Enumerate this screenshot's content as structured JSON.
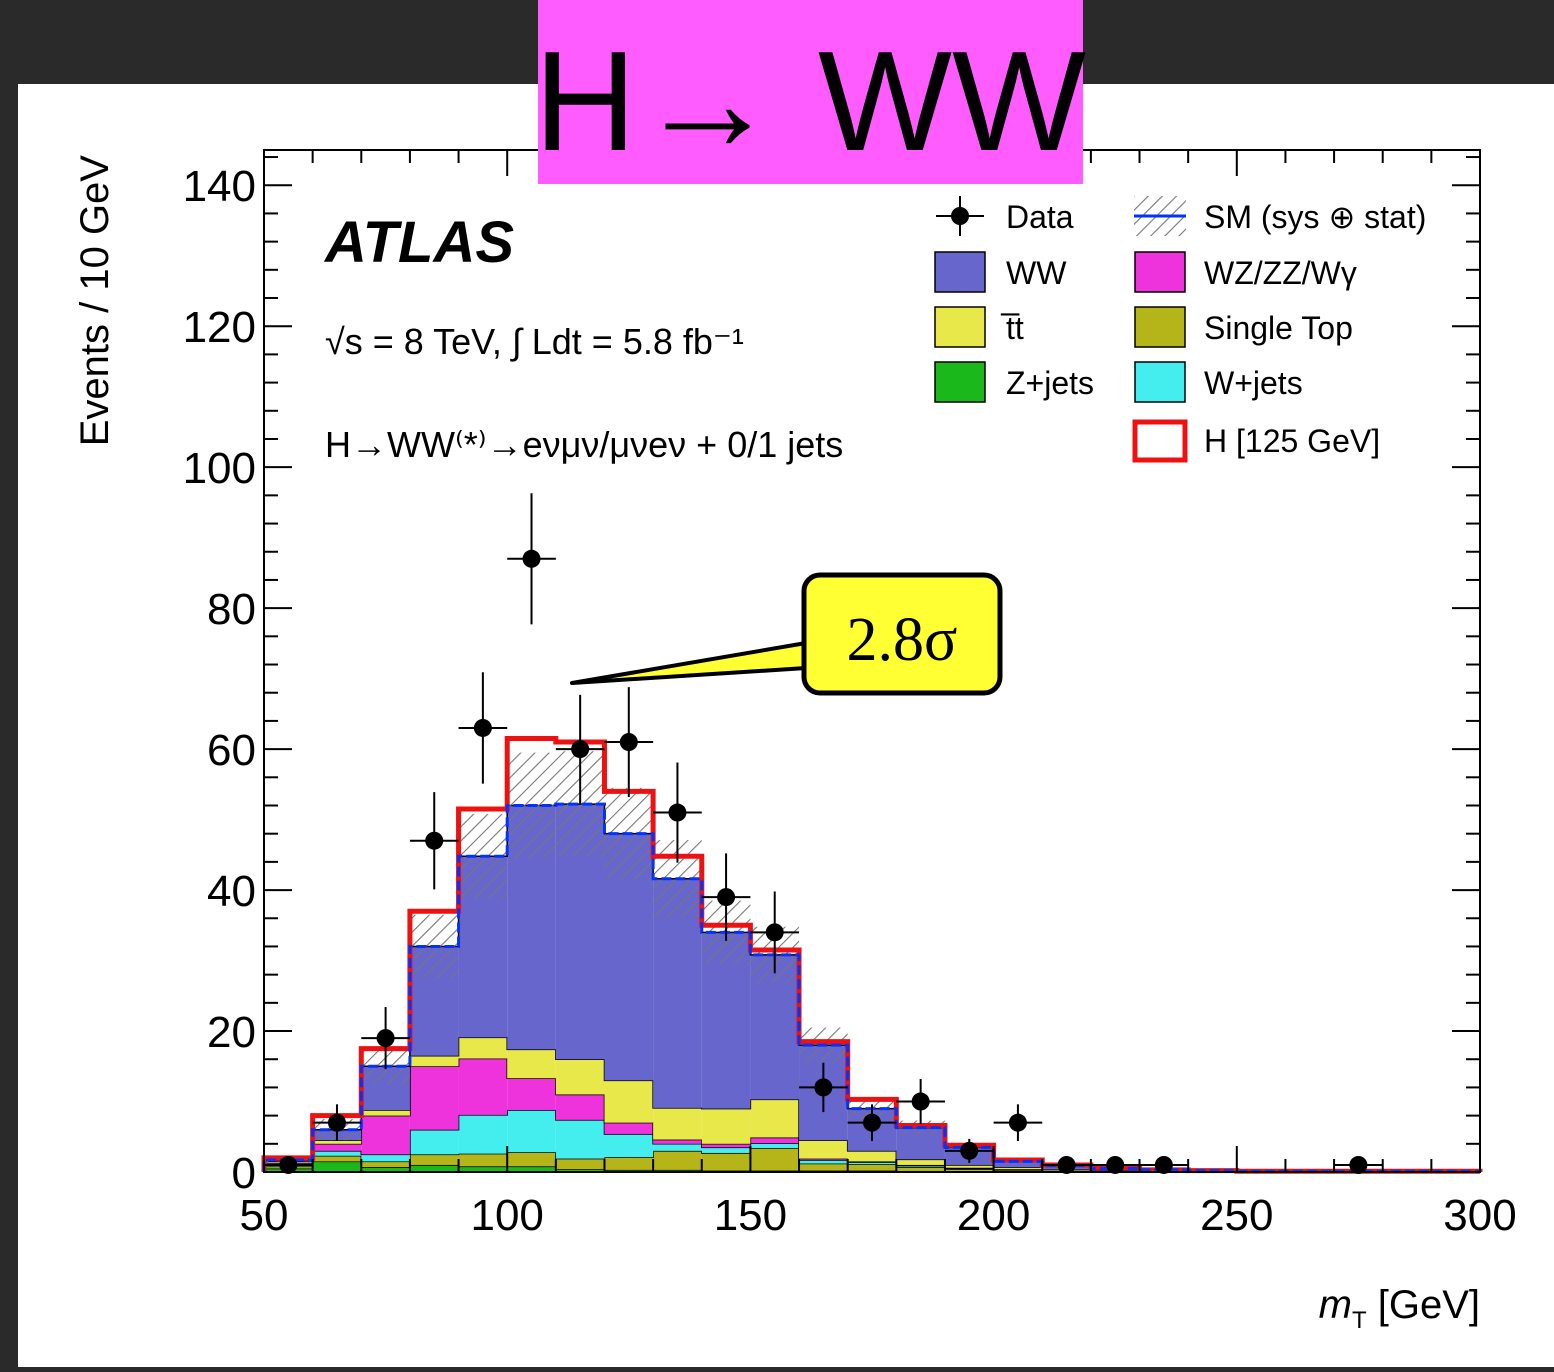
{
  "banner": {
    "title": "H→ WW",
    "bg_color": "#ff5cff"
  },
  "callout": {
    "label": "2.8σ",
    "bg_color": "#ffff33"
  },
  "chart_data": {
    "type": "bar",
    "subtype": "stacked-histogram",
    "experiment": "ATLAS",
    "energy_lumi": "√s = 8 TeV, ∫ Ldt = 5.8 fb⁻¹",
    "channel": "H→WW⁽*⁾→eνμν/μνeν + 0/1 jets",
    "xlabel": "m_T [GeV]",
    "ylabel": "Events / 10 GeV",
    "xlim": [
      50,
      300
    ],
    "ylim": [
      0,
      145
    ],
    "bin_width": 10,
    "xticks": [
      50,
      100,
      150,
      200,
      250,
      300
    ],
    "yticks": [
      0,
      20,
      40,
      60,
      80,
      100,
      120,
      140
    ],
    "bins_low": [
      50,
      60,
      70,
      80,
      90,
      100,
      110,
      120,
      130,
      140,
      150,
      160,
      170,
      180,
      190,
      200,
      210,
      220,
      230,
      240,
      250,
      260,
      270,
      280,
      290
    ],
    "stack": [
      {
        "name": "Z+jets",
        "color": "#1bb81b",
        "values": [
          0.5,
          1.5,
          0.7,
          1.0,
          0.8,
          0.8,
          0.4,
          0.3,
          0.3,
          0.2,
          0.2,
          0.2,
          0.2,
          0.1,
          0.1,
          0.1,
          0,
          0,
          0,
          0,
          0,
          0,
          0,
          0,
          0
        ]
      },
      {
        "name": "Single Top",
        "color": "#b5b519",
        "values": [
          0.3,
          0.8,
          0.8,
          1.5,
          1.8,
          2.0,
          1.5,
          1.8,
          2.7,
          2.5,
          3.2,
          1.0,
          0.9,
          0.6,
          0.3,
          0.2,
          0.1,
          0.1,
          0,
          0,
          0,
          0,
          0,
          0,
          0
        ]
      },
      {
        "name": "W+jets",
        "color": "#44eeee",
        "values": [
          0.2,
          0.7,
          1.0,
          3.5,
          5.5,
          6.0,
          5.5,
          3.3,
          1.0,
          0.8,
          0.7,
          0.5,
          0.3,
          0.2,
          0.1,
          0.1,
          0.1,
          0,
          0,
          0,
          0,
          0,
          0,
          0,
          0
        ]
      },
      {
        "name": "WZ/ZZ/Wγ",
        "color": "#ee33dd",
        "values": [
          0.3,
          1.0,
          5.5,
          9.0,
          8.0,
          4.5,
          3.6,
          1.6,
          0.6,
          0.5,
          0.8,
          0.2,
          0.1,
          0.1,
          0.1,
          0,
          0,
          0,
          0,
          0,
          0,
          0,
          0,
          0,
          0
        ]
      },
      {
        "name": "t̅t",
        "color": "#e8e84a",
        "values": [
          0.2,
          0.5,
          0.8,
          1.5,
          3.0,
          4.1,
          5.0,
          6.0,
          4.5,
          5.0,
          5.4,
          2.6,
          1.5,
          0.8,
          0.4,
          0.3,
          0.2,
          0.1,
          0.1,
          0,
          0,
          0,
          0,
          0,
          0
        ]
      },
      {
        "name": "WW",
        "color": "#6666cc",
        "values": [
          0.2,
          1.5,
          6.2,
          15.5,
          25.7,
          34.6,
          36.2,
          35.0,
          32.5,
          25.0,
          20.5,
          13.5,
          6.0,
          4.5,
          2.5,
          0.8,
          0.5,
          0.3,
          0.2,
          0.2,
          0.1,
          0.1,
          0.1,
          0,
          0
        ]
      }
    ],
    "sm_total": [
      1.7,
      6.0,
      15.0,
      32.0,
      44.8,
      52.0,
      52.2,
      48.0,
      41.6,
      34.0,
      30.8,
      18.0,
      9.0,
      6.3,
      3.5,
      1.5,
      0.9,
      0.5,
      0.3,
      0.2,
      0.1,
      0.1,
      0.1,
      0.1,
      0.1
    ],
    "sm_uncertainty": [
      0.4,
      1.5,
      2.5,
      4.5,
      6.0,
      7.5,
      7.5,
      6.5,
      5.5,
      4.5,
      4.0,
      2.5,
      1.5,
      1.0,
      0.6,
      0.3,
      0.2,
      0.1,
      0.1,
      0.1,
      0,
      0,
      0,
      0,
      0
    ],
    "signal_total": [
      2.0,
      8.0,
      17.5,
      37.0,
      51.5,
      61.5,
      61.0,
      54.0,
      44.8,
      35.0,
      31.5,
      18.5,
      10.3,
      6.6,
      3.8,
      1.7,
      1.0,
      0.6,
      0.3,
      0.2,
      0.1,
      0.1,
      0.1,
      0.1,
      0.1
    ],
    "data": {
      "x": [
        55,
        65,
        75,
        85,
        95,
        105,
        115,
        125,
        135,
        145,
        155,
        165,
        175,
        185,
        195,
        205,
        215,
        225,
        235,
        275
      ],
      "y": [
        1,
        7,
        19,
        47,
        63,
        87,
        60,
        61,
        51,
        39,
        34,
        12,
        7,
        10,
        3,
        7,
        1,
        1,
        1,
        1
      ],
      "err": [
        1.0,
        2.6,
        4.4,
        6.9,
        7.9,
        9.3,
        7.7,
        7.8,
        7.1,
        6.2,
        5.8,
        3.5,
        2.6,
        3.2,
        1.7,
        2.6,
        1.0,
        1.0,
        1.0,
        1.0
      ]
    },
    "legend": {
      "placement": "top-right",
      "items": [
        {
          "label": "Data",
          "kind": "marker",
          "color": "#000000"
        },
        {
          "label": "SM (sys ⊕ stat)",
          "kind": "hatch-line",
          "color": "#0033ff"
        },
        {
          "label": "WW",
          "kind": "box",
          "color": "#6666cc"
        },
        {
          "label": "WZ/ZZ/Wγ",
          "kind": "box",
          "color": "#ee33dd"
        },
        {
          "label": "t̅t",
          "kind": "box",
          "color": "#e8e84a"
        },
        {
          "label": "Single Top",
          "kind": "box",
          "color": "#b5b519"
        },
        {
          "label": "Z+jets",
          "kind": "box",
          "color": "#1bb81b"
        },
        {
          "label": "W+jets",
          "kind": "box",
          "color": "#44eeee"
        },
        {
          "label": "H [125 GeV]",
          "kind": "outline",
          "color": "#ee1111"
        }
      ]
    }
  }
}
